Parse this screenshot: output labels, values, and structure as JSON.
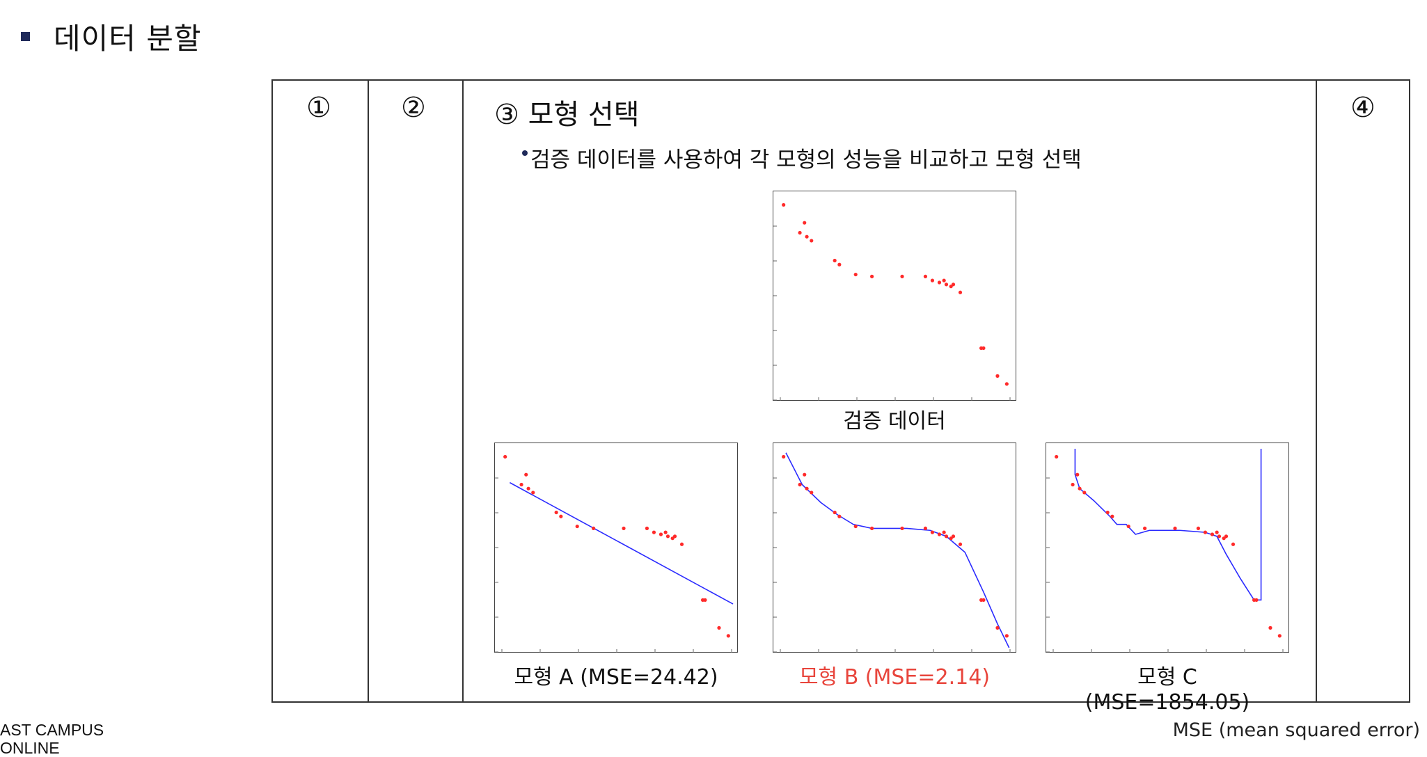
{
  "heading": {
    "text": "데이터 분할"
  },
  "columns": {
    "c1": "①",
    "c2": "②",
    "c3": "③ 모형 선택",
    "c4": "④"
  },
  "description": "검증 데이터를 사용하여 각 모형의 성능을 비교하고 모형 선택",
  "plots": {
    "validation": {
      "caption": "검증 데이터"
    },
    "model_a": {
      "caption": "모형 A (MSE=24.42)"
    },
    "model_b": {
      "caption": "모형 B (MSE=2.14)"
    },
    "model_c": {
      "caption_line1": "모형 C",
      "caption_line2": "(MSE=1854.05)"
    }
  },
  "chart_data": {
    "type": "scatter",
    "points": [
      [
        0.02,
        0.96
      ],
      [
        0.09,
        0.82
      ],
      [
        0.11,
        0.87
      ],
      [
        0.12,
        0.8
      ],
      [
        0.14,
        0.78
      ],
      [
        0.24,
        0.68
      ],
      [
        0.26,
        0.66
      ],
      [
        0.33,
        0.61
      ],
      [
        0.4,
        0.6
      ],
      [
        0.53,
        0.6
      ],
      [
        0.63,
        0.6
      ],
      [
        0.66,
        0.58
      ],
      [
        0.69,
        0.57
      ],
      [
        0.71,
        0.58
      ],
      [
        0.72,
        0.56
      ],
      [
        0.74,
        0.55
      ],
      [
        0.75,
        0.56
      ],
      [
        0.78,
        0.52
      ],
      [
        0.87,
        0.24
      ],
      [
        0.88,
        0.24
      ],
      [
        0.94,
        0.1
      ],
      [
        0.98,
        0.06
      ]
    ],
    "model_b_curve": [
      [
        0.03,
        0.98
      ],
      [
        0.1,
        0.82
      ],
      [
        0.18,
        0.73
      ],
      [
        0.25,
        0.67
      ],
      [
        0.32,
        0.62
      ],
      [
        0.4,
        0.6
      ],
      [
        0.55,
        0.6
      ],
      [
        0.65,
        0.59
      ],
      [
        0.72,
        0.56
      ],
      [
        0.8,
        0.48
      ],
      [
        0.88,
        0.28
      ],
      [
        0.94,
        0.12
      ],
      [
        0.99,
        0.0
      ]
    ],
    "model_c_curve": [
      [
        0.1,
        1.0
      ],
      [
        0.1,
        0.87
      ],
      [
        0.12,
        0.8
      ],
      [
        0.18,
        0.74
      ],
      [
        0.25,
        0.66
      ],
      [
        0.28,
        0.62
      ],
      [
        0.32,
        0.62
      ],
      [
        0.36,
        0.57
      ],
      [
        0.42,
        0.59
      ],
      [
        0.55,
        0.59
      ],
      [
        0.66,
        0.58
      ],
      [
        0.71,
        0.56
      ],
      [
        0.75,
        0.47
      ],
      [
        0.81,
        0.35
      ],
      [
        0.87,
        0.24
      ],
      [
        0.9,
        0.24
      ],
      [
        0.9,
        1.0
      ]
    ],
    "model_a_line": [
      [
        0.04,
        0.83
      ],
      [
        1.0,
        0.22
      ]
    ],
    "colors": {
      "points": "#ff2a2a",
      "model": "#2b2bff",
      "highlight": "#e8453c"
    }
  },
  "footer": {
    "left_line1": "AST CAMPUS",
    "left_line2": "ONLINE",
    "right": "MSE (mean squared error)"
  }
}
